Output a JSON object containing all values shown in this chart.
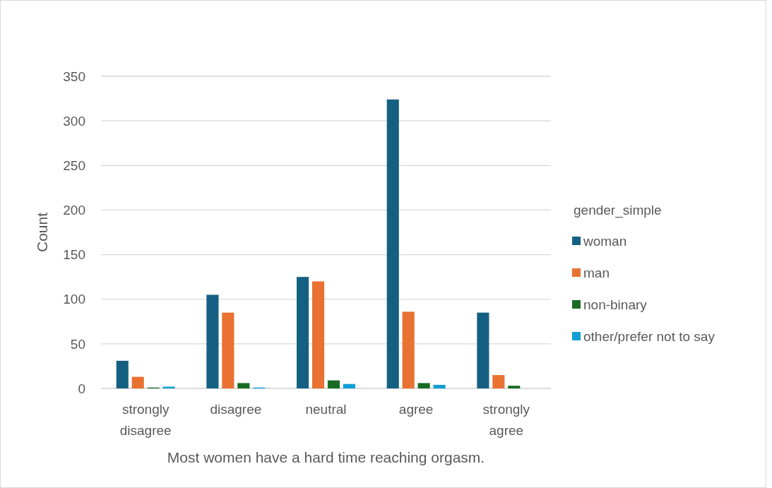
{
  "chart_data": {
    "type": "bar",
    "xlabel": "Most women have a hard time reaching orgasm.",
    "ylabel": "Count",
    "legend_title": "gender_simple",
    "categories": [
      "strongly disagree",
      "disagree",
      "neutral",
      "agree",
      "strongly agree"
    ],
    "series": [
      {
        "name": "woman",
        "color": "#156082",
        "values": [
          31,
          105,
          125,
          324,
          85
        ]
      },
      {
        "name": "man",
        "color": "#e97132",
        "values": [
          13,
          85,
          120,
          86,
          15
        ]
      },
      {
        "name": "non-binary",
        "color": "#196b24",
        "values": [
          1,
          6,
          9,
          6,
          3
        ]
      },
      {
        "name": "other/prefer not to say",
        "color": "#0f9ed5",
        "values": [
          2,
          1,
          5,
          4,
          0
        ]
      }
    ],
    "ylim": [
      0,
      350
    ],
    "yticks": [
      0,
      50,
      100,
      150,
      200,
      250,
      300,
      350
    ],
    "grid": "y",
    "legend": "right"
  }
}
